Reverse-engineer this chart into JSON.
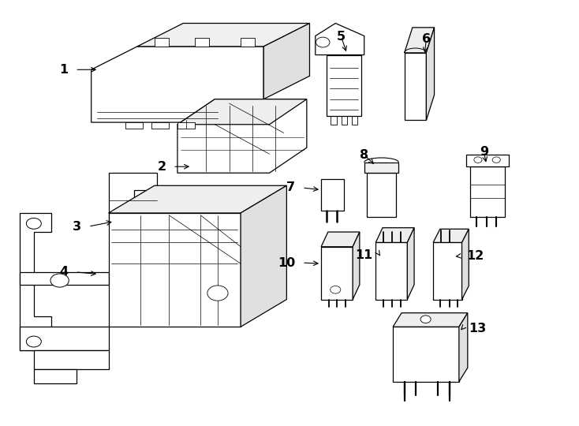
{
  "background_color": "#ffffff",
  "line_color": "#000000",
  "label_color": "#000000",
  "fig_width": 7.34,
  "fig_height": 5.4,
  "dpi": 100
}
